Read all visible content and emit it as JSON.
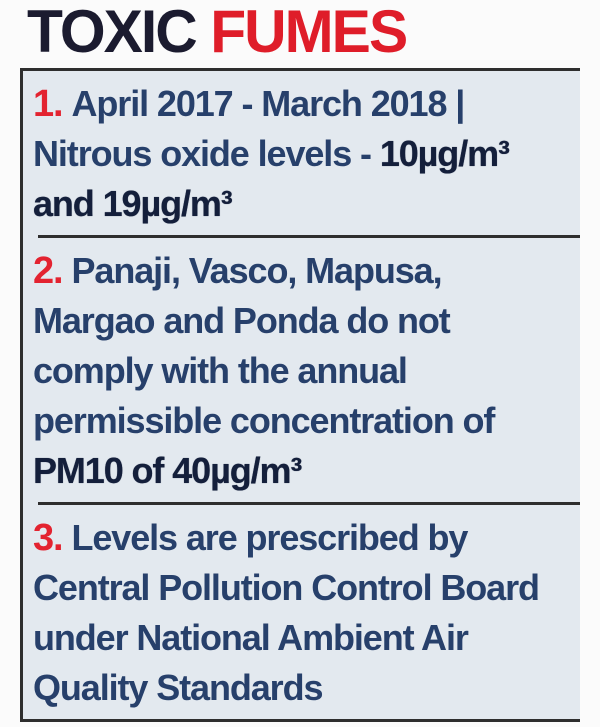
{
  "title": {
    "part1": "TOXIC",
    "part2": " FUMES"
  },
  "colors": {
    "headline_dark": "#1b1b2f",
    "headline_red": "#df1d29",
    "number_red": "#e32330",
    "body_text": "#27406b",
    "body_text_strong": "#141f3b",
    "box_background": "#e3e9ef",
    "border_dark": "#2e2e2e",
    "page_background": "#fbfbfb"
  },
  "sections": [
    {
      "number": "1.",
      "lines": [
        {
          "segments": [
            {
              "text": "April 2017 - March 2018 |",
              "style": "regular"
            }
          ]
        },
        {
          "segments": [
            {
              "text": "Nitrous oxide levels - ",
              "style": "regular"
            },
            {
              "text": "10µg/m³",
              "style": "bold"
            }
          ]
        },
        {
          "segments": [
            {
              "text": "and 19µg/m³",
              "style": "bold"
            }
          ]
        }
      ]
    },
    {
      "number": "2.",
      "lines": [
        {
          "segments": [
            {
              "text": "Panaji, Vasco, Mapusa,",
              "style": "regular"
            }
          ]
        },
        {
          "segments": [
            {
              "text": "Margao and Ponda do not",
              "style": "regular"
            }
          ]
        },
        {
          "segments": [
            {
              "text": "comply with the annual",
              "style": "regular"
            }
          ]
        },
        {
          "segments": [
            {
              "text": "permissible concentration of",
              "style": "regular"
            }
          ]
        },
        {
          "segments": [
            {
              "text": "PM10 of 40µg/m³",
              "style": "bold"
            }
          ]
        }
      ]
    },
    {
      "number": "3.",
      "lines": [
        {
          "segments": [
            {
              "text": "Levels are prescribed by",
              "style": "regular"
            }
          ]
        },
        {
          "segments": [
            {
              "text": "Central Pollution Control Board",
              "style": "regular"
            }
          ]
        },
        {
          "segments": [
            {
              "text": "under National Ambient Air",
              "style": "regular"
            }
          ]
        },
        {
          "segments": [
            {
              "text": "Quality Standards",
              "style": "regular"
            }
          ]
        }
      ]
    }
  ]
}
